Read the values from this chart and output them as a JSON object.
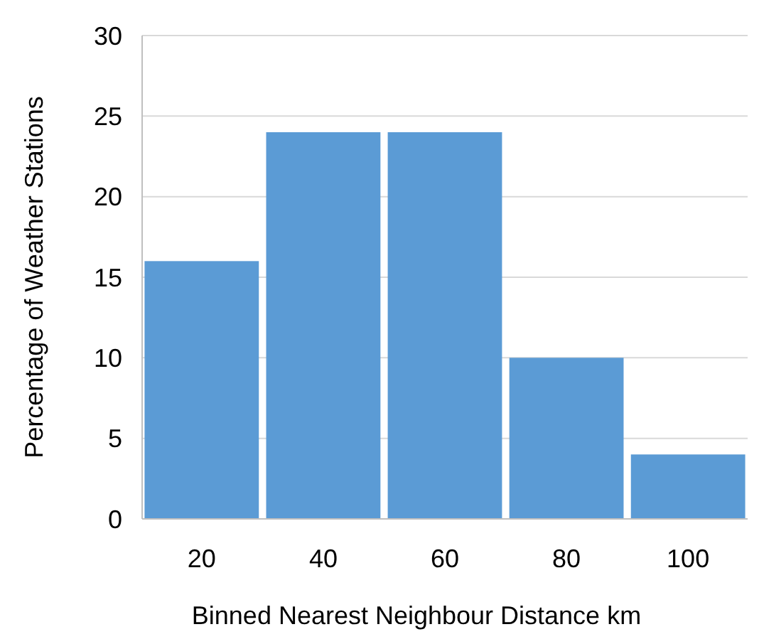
{
  "chart_data": {
    "type": "bar",
    "xlabel": "Binned Nearest Neighbour Distance km",
    "ylabel": "Percentage of Weather Stations",
    "categories": [
      "20",
      "40",
      "60",
      "80",
      "100"
    ],
    "values": [
      16,
      24,
      24,
      10,
      4
    ],
    "color": "#5b9bd5",
    "ylim": [
      0,
      30
    ],
    "yticks": [
      0,
      5,
      10,
      15,
      20,
      25,
      30
    ],
    "grid": "y"
  }
}
